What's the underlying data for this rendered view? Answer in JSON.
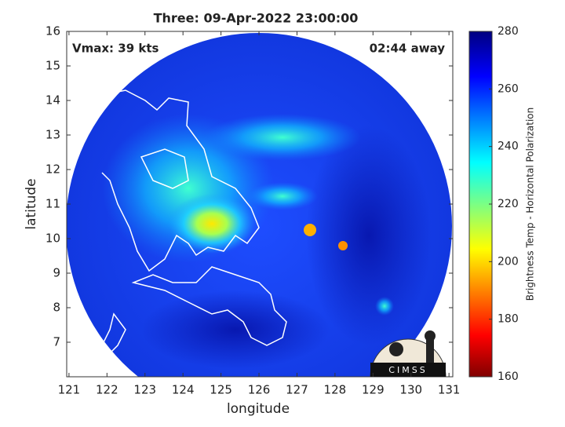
{
  "chart_data": {
    "type": "map",
    "title": "Three: 09-Apr-2022 23:00:00",
    "annotations": {
      "vmax": "Vmax: 39 kts",
      "time_away": "02:44 away",
      "logo": "CIMSS"
    },
    "xlabel": "longitude",
    "ylabel": "latitude",
    "xlim": [
      120.94,
      131.1
    ],
    "ylim": [
      6,
      16
    ],
    "xticks": [
      121,
      122,
      123,
      124,
      125,
      126,
      127,
      128,
      129,
      130,
      131
    ],
    "yticks": [
      7,
      8,
      9,
      10,
      11,
      12,
      13,
      14,
      15,
      16
    ],
    "colorbar": {
      "label": "Brightness Temp - Horizontal Polarization",
      "lim": [
        160,
        280
      ],
      "ticks": [
        160,
        180,
        200,
        220,
        240,
        260,
        280
      ]
    }
  }
}
